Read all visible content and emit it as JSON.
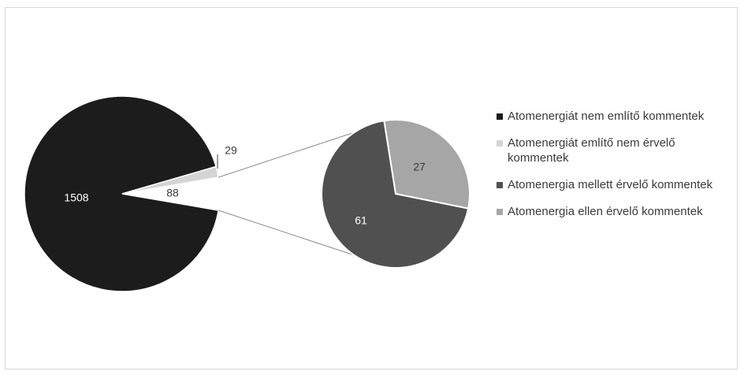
{
  "chart_data": {
    "type": "pie",
    "subtype": "pie-of-pie",
    "slices": [
      {
        "name": "Atomenergiát nem említő kommentek",
        "value": 1508,
        "label": "1508",
        "color": "#1c1c1c",
        "chart": "main"
      },
      {
        "name": "Atomenergiát említő nem érvelő kommentek",
        "value": 29,
        "label": "29",
        "color": "#d4d4d4",
        "chart": "main"
      },
      {
        "name": "Atomenergia mellett érvelő kommentek",
        "value": 61,
        "label": "61",
        "color": "#505050",
        "chart": "secondary"
      },
      {
        "name": "Atomenergia ellen érvelő kommentek",
        "value": 27,
        "label": "27",
        "color": "#a6a6a6",
        "chart": "secondary"
      }
    ],
    "combined_slice": {
      "value": 88,
      "label": "88",
      "color": "#ffffff"
    },
    "legend_position": "right"
  }
}
